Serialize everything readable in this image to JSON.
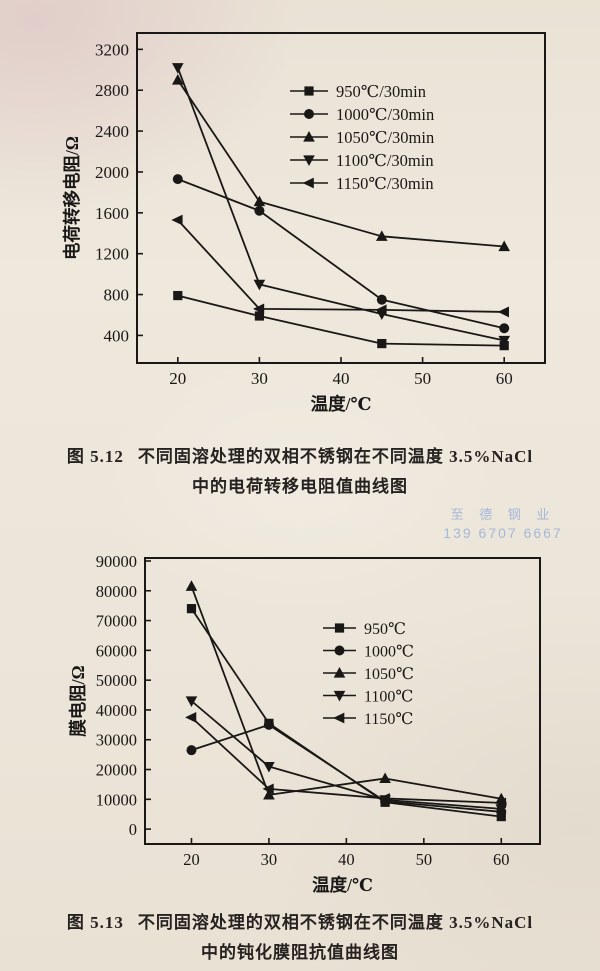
{
  "page": {
    "colors": {
      "paper": "#ece5da",
      "ink": "#1e1c1a",
      "watermark_blue": "#8fa8d8"
    },
    "watermark": {
      "line1": "至 德 钢 业",
      "line2": "139 6707 6667"
    },
    "captions": [
      {
        "fig": "图 5.12",
        "line1": "不同固溶处理的双相不锈钢在不同温度 3.5%NaCl",
        "line2": "中的电荷转移电阻值曲线图"
      },
      {
        "fig": "图 5.13",
        "line1": "不同固溶处理的双相不锈钢在不同温度 3.5%NaCl",
        "line2": "中的钝化膜阻抗值曲线图"
      }
    ]
  },
  "chart_data": [
    {
      "type": "line",
      "title": "",
      "xlabel": "温度/℃",
      "ylabel": "电荷转移电阻/Ω",
      "x": [
        20,
        30,
        45,
        60
      ],
      "xlim": [
        15,
        65
      ],
      "xticks": [
        20,
        30,
        40,
        50,
        60
      ],
      "ylim": [
        130,
        3360
      ],
      "yticks": [
        400,
        800,
        1200,
        1600,
        2000,
        2400,
        2800,
        3200
      ],
      "grid": false,
      "legend_position": "inside-upper-right",
      "series": [
        {
          "name": "950℃/30min",
          "marker": "square",
          "values": [
            790,
            590,
            320,
            300
          ]
        },
        {
          "name": "1000℃/30min",
          "marker": "circle",
          "values": [
            1930,
            1620,
            750,
            470
          ]
        },
        {
          "name": "1050℃/30min",
          "marker": "triangle-up",
          "values": [
            2900,
            1710,
            1370,
            1270
          ]
        },
        {
          "name": "1100℃/30min",
          "marker": "triangle-down",
          "values": [
            3020,
            900,
            610,
            350
          ]
        },
        {
          "name": "1150℃/30min",
          "marker": "triangle-left",
          "values": [
            1530,
            660,
            650,
            630
          ]
        }
      ]
    },
    {
      "type": "line",
      "title": "",
      "xlabel": "温度/℃",
      "ylabel": "膜电阻/Ω",
      "x": [
        20,
        30,
        45,
        60
      ],
      "xlim": [
        14,
        65
      ],
      "xticks": [
        20,
        30,
        40,
        50,
        60
      ],
      "ylim": [
        -5000,
        91000
      ],
      "yticks": [
        0,
        10000,
        20000,
        30000,
        40000,
        50000,
        60000,
        70000,
        80000,
        90000
      ],
      "grid": false,
      "legend_position": "inside-upper-right",
      "series": [
        {
          "name": "950℃",
          "marker": "square",
          "values": [
            74000,
            35500,
            9000,
            4200
          ]
        },
        {
          "name": "1000℃",
          "marker": "circle",
          "values": [
            26500,
            35000,
            9300,
            5800
          ]
        },
        {
          "name": "1050℃",
          "marker": "triangle-up",
          "values": [
            81500,
            11500,
            17000,
            10200
          ]
        },
        {
          "name": "1100℃",
          "marker": "triangle-down",
          "values": [
            43000,
            21000,
            9800,
            6800
          ]
        },
        {
          "name": "1150℃",
          "marker": "triangle-left",
          "values": [
            37500,
            13500,
            10300,
            8800
          ]
        }
      ]
    }
  ]
}
